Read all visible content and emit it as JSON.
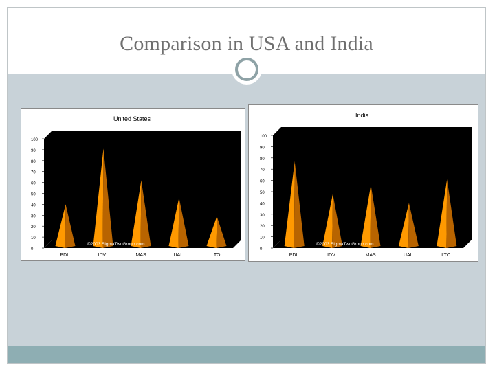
{
  "slide": {
    "title": "Comparison in USA and India"
  },
  "chart_data": [
    {
      "type": "bar",
      "title": "United States",
      "categories": [
        "PDI",
        "IDV",
        "MAS",
        "UAI",
        "LTO"
      ],
      "values": [
        40,
        91,
        62,
        46,
        29
      ],
      "ylim": [
        0,
        100
      ],
      "yticks": [
        "0",
        "10",
        "20",
        "30",
        "40",
        "50",
        "60",
        "70",
        "80",
        "90",
        "100"
      ],
      "watermark": "©2003 SigmaTwoGroup.com",
      "bar_color": "#ff9900",
      "plot_background": "#000000",
      "grid": false,
      "legend": "none"
    },
    {
      "type": "bar",
      "title": "India",
      "categories": [
        "PDI",
        "IDV",
        "MAS",
        "UAI",
        "LTO"
      ],
      "values": [
        77,
        48,
        56,
        40,
        61
      ],
      "ylim": [
        0,
        100
      ],
      "yticks": [
        "0",
        "10",
        "20",
        "30",
        "40",
        "50",
        "60",
        "70",
        "80",
        "90",
        "100"
      ],
      "watermark": "©2003 SigmaTwoGroup.com",
      "bar_color": "#ff9900",
      "plot_background": "#000000",
      "grid": false,
      "legend": "none"
    }
  ]
}
